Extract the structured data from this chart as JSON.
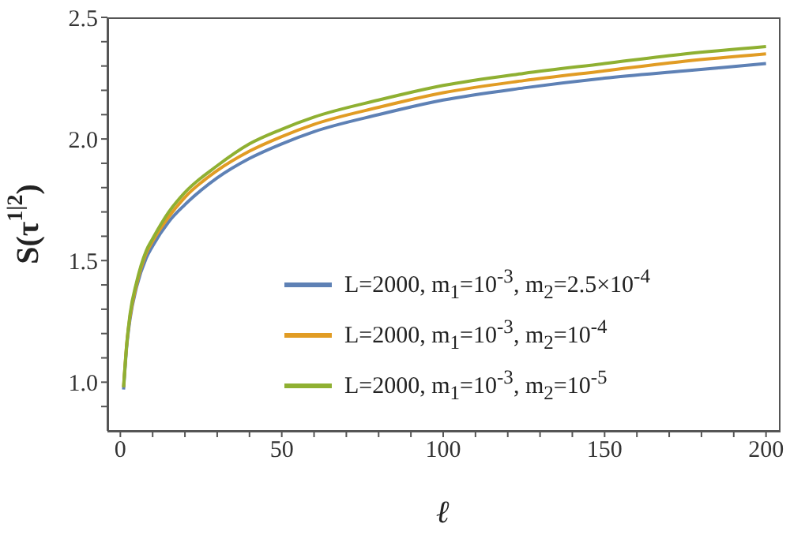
{
  "chart_data": {
    "type": "line",
    "xlabel": "ℓ",
    "ylabel": "S(τ$^{1|2}$)",
    "x": [
      1,
      2,
      3,
      5,
      8,
      10,
      15,
      20,
      30,
      40,
      50,
      60,
      80,
      100,
      125,
      150,
      175,
      200
    ],
    "series": [
      {
        "name": "L=2000, m$_{1}$=10$^{-3}$, m$_{2}$=2.5×10$^{-4}$",
        "color": "#5e81b5",
        "values": [
          0.97,
          1.15,
          1.26,
          1.39,
          1.51,
          1.56,
          1.66,
          1.73,
          1.84,
          1.92,
          1.98,
          2.03,
          2.1,
          2.16,
          2.21,
          2.25,
          2.28,
          2.31
        ]
      },
      {
        "name": "L=2000, m$_{1}$=10$^{-3}$, m$_{2}$=10$^{-4}$",
        "color": "#e19c24",
        "values": [
          0.98,
          1.16,
          1.27,
          1.4,
          1.53,
          1.58,
          1.68,
          1.76,
          1.87,
          1.95,
          2.01,
          2.06,
          2.13,
          2.19,
          2.24,
          2.28,
          2.32,
          2.35
        ]
      },
      {
        "name": "L=2000, m$_{1}$=10$^{-3}$, m$_{2}$=10$^{-5}$",
        "color": "#8fb032",
        "values": [
          0.98,
          1.16,
          1.28,
          1.41,
          1.54,
          1.59,
          1.7,
          1.78,
          1.89,
          1.98,
          2.04,
          2.09,
          2.16,
          2.22,
          2.27,
          2.31,
          2.35,
          2.38
        ]
      }
    ],
    "xlim": [
      -4,
      204
    ],
    "xticks": [
      0,
      {
        "value": 10,
        "label": null
      },
      {
        "value": 20,
        "label": null
      },
      {
        "value": 30,
        "label": null
      },
      {
        "value": 40,
        "label": null
      },
      50,
      {
        "value": 60,
        "label": null
      },
      {
        "value": 70,
        "label": null
      },
      {
        "value": 80,
        "label": null
      },
      {
        "value": 90,
        "label": null
      },
      100,
      {
        "value": 110,
        "label": null
      },
      {
        "value": 120,
        "label": null
      },
      {
        "value": 130,
        "label": null
      },
      {
        "value": 140,
        "label": null
      },
      150,
      {
        "value": 160,
        "label": null
      },
      {
        "value": 170,
        "label": null
      },
      {
        "value": 180,
        "label": null
      },
      {
        "value": 190,
        "label": null
      },
      200
    ],
    "ylim": [
      0.8,
      2.5
    ],
    "yticks": [
      {
        "value": 0.9,
        "label": null
      },
      {
        "value": 1.0,
        "label": "1.0"
      },
      {
        "value": 1.1,
        "label": null
      },
      {
        "value": 1.2,
        "label": null
      },
      {
        "value": 1.3,
        "label": null
      },
      {
        "value": 1.4,
        "label": null
      },
      {
        "value": 1.5,
        "label": "1.5"
      },
      {
        "value": 1.6,
        "label": null
      },
      {
        "value": 1.7,
        "label": null
      },
      {
        "value": 1.8,
        "label": null
      },
      {
        "value": 1.9,
        "label": null
      },
      {
        "value": 2.0,
        "label": "2.0"
      },
      {
        "value": 2.1,
        "label": null
      },
      {
        "value": 2.2,
        "label": null
      },
      {
        "value": 2.3,
        "label": null
      },
      {
        "value": 2.4,
        "label": null
      },
      {
        "value": 2.5,
        "label": "2.5"
      }
    ],
    "grid": false,
    "legend": "bottom right",
    "marker": "none",
    "line_style": "solid"
  }
}
